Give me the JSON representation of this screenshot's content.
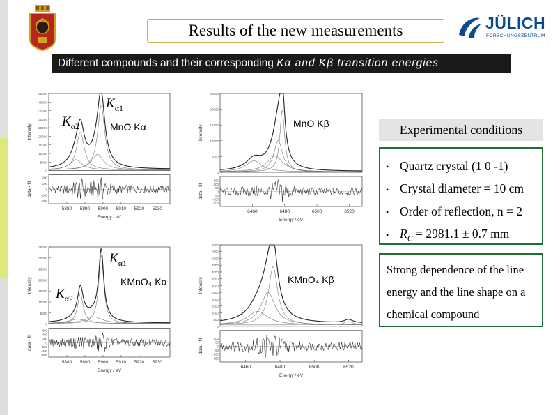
{
  "title": "Results of  the new measurements",
  "subtitle": {
    "text": "Different compounds and their corresponding ",
    "italic": "Kα and Kβ transition energies"
  },
  "logo": {
    "brand": "JÜLICH",
    "brand_sub": "FORSCHUNGSZENTRUM"
  },
  "colors": {
    "subtitle_bg": "#1a1a1a",
    "box_border": "#1f6e33",
    "title_border": "#c9b44a",
    "header_bg": "#e4e4e4",
    "logo_blue": "#0a4b8c",
    "crest_red": "#b5261e"
  },
  "panels": {
    "mno_ka": {
      "label": "MnO Kα",
      "k1": "K",
      "k1_sub": "α1",
      "k2": "K",
      "k2_sub": "α2"
    },
    "mno_kb": {
      "label": "MnO Kβ"
    },
    "kmno4_ka": {
      "label": "KMnO₄ Kα",
      "k1": "K",
      "k1_sub": "α1",
      "k2": "K",
      "k2_sub": "α2"
    },
    "kmno4_kb": {
      "label": "KMnO₄ Kβ"
    }
  },
  "experimental": {
    "header": "Experimental conditions",
    "items": [
      "Quartz crystal (1 0 -1)",
      "Crystal diameter = 10 cm",
      "Order of reflection, n = 2",
      "R",
      "C",
      " = 2981.1 ± 0.7 mm"
    ]
  },
  "note": "Strong dependence of the line energy and the line shape on a chemical compound",
  "chart_data": [
    {
      "type": "line",
      "title": "MnO Kα",
      "xlabel": "Energy / eV",
      "ylabel": "Intensity",
      "residual_label": "data - fit",
      "xlim": [
        5870,
        5937
      ],
      "ylim": [
        0,
        45000
      ],
      "xticks": [
        5880,
        5890,
        5900,
        5910,
        5920,
        5930
      ],
      "yticks": [
        0,
        5000,
        10000,
        15000,
        20000,
        25000,
        30000,
        35000,
        40000,
        45000
      ],
      "ytick_labels": [
        "0",
        "5000",
        "10000",
        "15000",
        "20000",
        "25000",
        "30000",
        "35000",
        "40000",
        "45000"
      ],
      "residual_ylim": [
        -250,
        250
      ],
      "residual_ticks": [
        "200",
        "100",
        "0",
        "-100",
        "-200"
      ],
      "peaks": [
        {
          "name": "Kα1",
          "center": 5899,
          "height": 37500,
          "width": 2.4
        },
        {
          "name": "Kα2",
          "center": 5887.5,
          "height": 22000,
          "width": 2.6
        },
        {
          "center": 5897,
          "height": 9000,
          "width": 4
        },
        {
          "center": 5885,
          "height": 6000,
          "width": 4
        }
      ],
      "baseline": 800
    },
    {
      "type": "line",
      "title": "MnO Kβ",
      "xlabel": "Energy / eV",
      "ylabel": "Intensity",
      "residual_label": "data - fit",
      "xlim": [
        6440,
        6528
      ],
      "ylim": [
        0,
        25000
      ],
      "xticks": [
        6460,
        6480,
        6500,
        6520
      ],
      "yticks": [
        0,
        5000,
        10000,
        15000,
        20000,
        25000
      ],
      "ytick_labels": [
        "0",
        "5000",
        "10000",
        "15000",
        "20000",
        "25000"
      ],
      "residual_ylim": [
        -200,
        200
      ],
      "residual_ticks": [
        "150",
        "100",
        "50",
        "0",
        "-50",
        "-100",
        "-150"
      ],
      "peaks": [
        {
          "center": 6478.5,
          "height": 19500,
          "width": 1.8
        },
        {
          "center": 6476,
          "height": 10000,
          "width": 3.2
        },
        {
          "center": 6461,
          "height": 3500,
          "width": 6
        },
        {
          "center": 6474,
          "height": 5000,
          "width": 6
        }
      ],
      "baseline": 300
    },
    {
      "type": "line",
      "title": "KMnO₄ Kα",
      "xlabel": "Energy / eV",
      "ylabel": "Intensity",
      "residual_label": "data - fit",
      "xlim": [
        5870,
        5937
      ],
      "ylim": [
        0,
        35000
      ],
      "xticks": [
        5880,
        5890,
        5900,
        5910,
        5920,
        5930
      ],
      "yticks": [
        0,
        5000,
        10000,
        15000,
        20000,
        25000,
        30000,
        35000
      ],
      "ytick_labels": [
        "0",
        "5000",
        "10000",
        "15000",
        "20000",
        "25000",
        "30000",
        "35000"
      ],
      "residual_ylim": [
        -700,
        700
      ],
      "residual_ticks": [
        "600",
        "400",
        "200",
        "0",
        "-200",
        "-400",
        "-600"
      ],
      "peaks": [
        {
          "name": "Kα1",
          "center": 5899,
          "height": 31000,
          "width": 1.7
        },
        {
          "name": "Kα2",
          "center": 5887.5,
          "height": 13500,
          "width": 1.9
        },
        {
          "center": 5895,
          "height": 3000,
          "width": 6
        },
        {
          "center": 5886,
          "height": 2000,
          "width": 6
        }
      ],
      "baseline": 400
    },
    {
      "type": "line",
      "title": "KMnO₄ Kβ",
      "xlabel": "Energy / eV",
      "ylabel": "Intensity",
      "residual_label": "data - fit",
      "xlim": [
        6445,
        6528
      ],
      "ylim": [
        0,
        6000
      ],
      "xticks": [
        6460,
        6480,
        6500,
        6520
      ],
      "yticks": [
        0,
        500,
        1000,
        1500,
        2000,
        2500,
        3000,
        3500,
        4000,
        4500,
        5000,
        5500,
        6000
      ],
      "ytick_labels": [
        "0",
        "500",
        "1000",
        "1500",
        "2000",
        "2500",
        "3000",
        "3500",
        "4000",
        "4500",
        "5000",
        "5500",
        "6000"
      ],
      "residual_ylim": [
        -200,
        200
      ],
      "residual_ticks": [
        "100",
        "50",
        "0",
        "-50",
        "-100",
        "-150"
      ],
      "peaks": [
        {
          "center": 6476,
          "height": 4300,
          "width": 3.2
        },
        {
          "center": 6473,
          "height": 2400,
          "width": 5
        },
        {
          "center": 6467,
          "height": 1000,
          "width": 7
        },
        {
          "center": 6520,
          "height": 250,
          "width": 3
        }
      ],
      "baseline": 200
    }
  ]
}
